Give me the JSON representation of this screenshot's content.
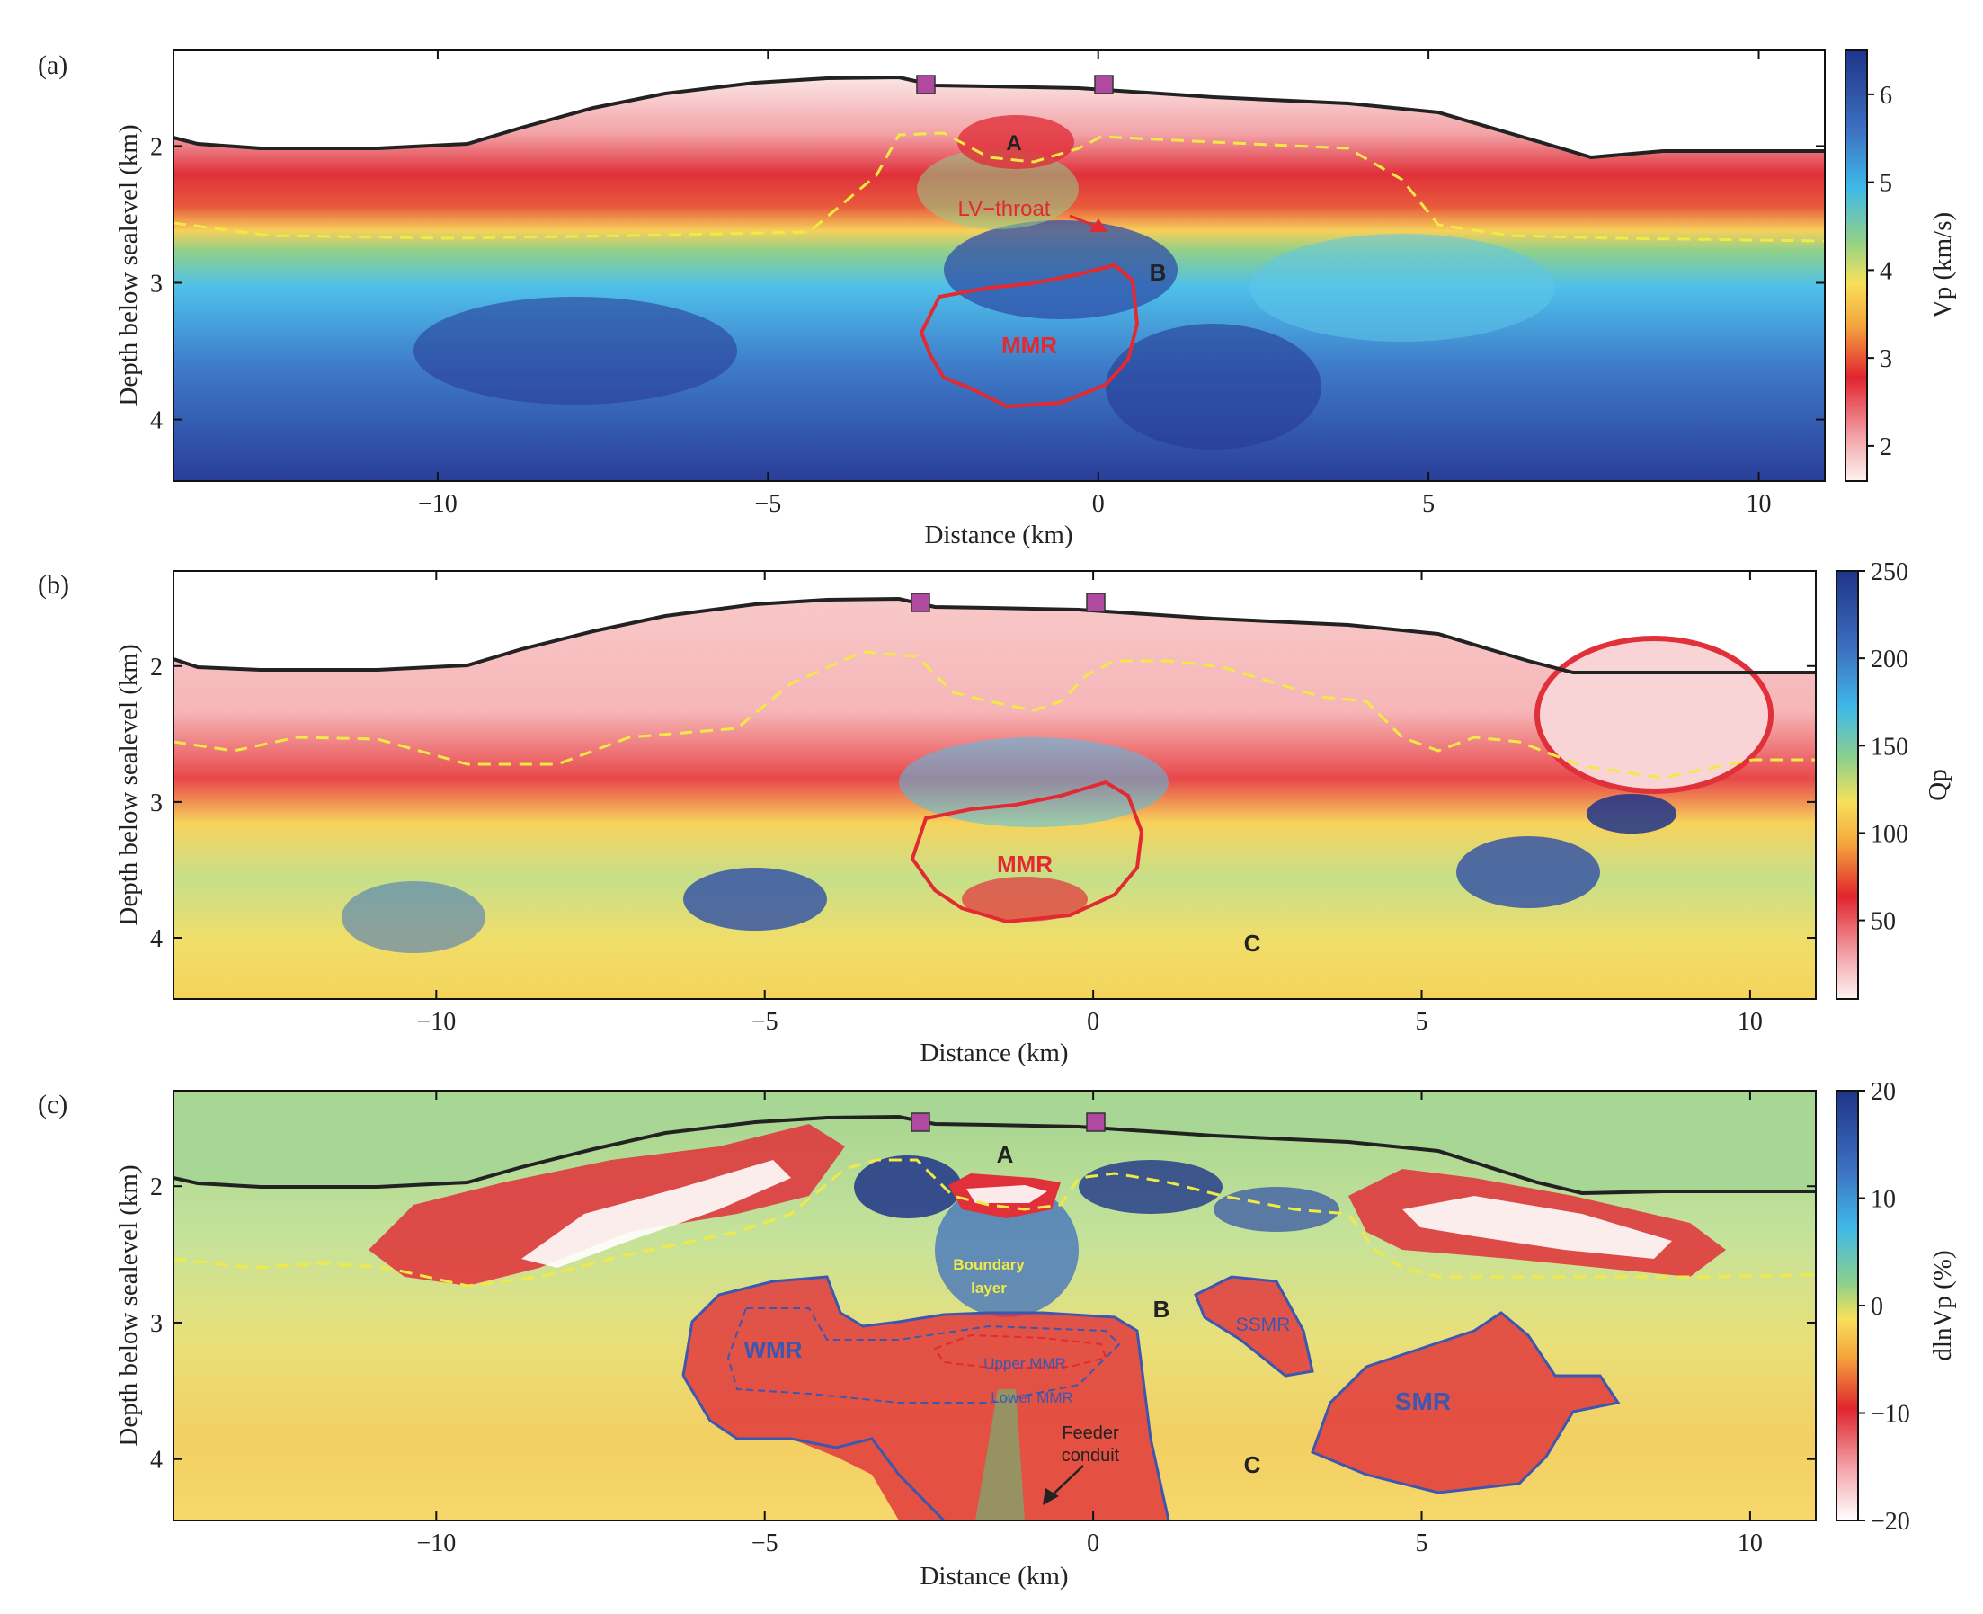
{
  "panels": [
    {
      "tag": "(a)",
      "xlabel": "Distance (km)",
      "ylabel": "Depth below sealevel (km)",
      "colorbar_label": "Vp (km/s)",
      "colorbar_ticks": [
        "2",
        "3",
        "4",
        "5",
        "6"
      ],
      "colorbar_ticks_values": [
        2,
        3,
        4,
        5,
        6
      ],
      "colorbar_range": [
        1.6,
        6.5
      ],
      "colormap": [
        "#fdf3f1",
        "#f3a5ab",
        "#e0252e",
        "#f4a43c",
        "#f7e15a",
        "#8fd08a",
        "#3fb9e8",
        "#3d6fc0",
        "#1e3489"
      ],
      "annotations": [
        "A",
        "LV-throat",
        "B",
        "MMR"
      ]
    },
    {
      "tag": "(b)",
      "xlabel": "Distance (km)",
      "ylabel": "Depth below sealevel (km)",
      "colorbar_label": "Qp",
      "colorbar_ticks": [
        "50",
        "100",
        "150",
        "200",
        "250"
      ],
      "colorbar_ticks_values": [
        50,
        100,
        150,
        200,
        250
      ],
      "colorbar_range": [
        5,
        250
      ],
      "colormap": [
        "#fdf3f1",
        "#f3a5ab",
        "#e0252e",
        "#f4a43c",
        "#f7e15a",
        "#8fd08a",
        "#3fb9e8",
        "#3d6fc0",
        "#1e3489"
      ],
      "annotations": [
        "MMR",
        "C"
      ]
    },
    {
      "tag": "(c)",
      "xlabel": "Distance (km)",
      "ylabel": "Depth below sealevel (km)",
      "colorbar_label": "dlnVp (%)",
      "colorbar_ticks": [
        "20",
        "10",
        "0",
        "−10",
        "−20"
      ],
      "colorbar_ticks_values": [
        20,
        10,
        0,
        -10,
        -20
      ],
      "colorbar_range": [
        -20,
        20
      ],
      "colormap": [
        "#ffffff",
        "#f3a5ab",
        "#e0252e",
        "#f4a43c",
        "#f7e15a",
        "#8fd08a",
        "#3fb9e8",
        "#3d6fc0",
        "#1e3489"
      ],
      "annotations": [
        "A",
        "Boundary layer",
        "B",
        "SSMR",
        "WMR",
        "Upper MMR",
        "Lower MMR",
        "SMR",
        "Feeder conduit",
        "C"
      ]
    }
  ],
  "x_ticks": [
    "−10",
    "−5",
    "0",
    "5",
    "10"
  ],
  "y_ticks": [
    "2",
    "3",
    "4"
  ],
  "labels": {
    "A": "A",
    "B": "B",
    "C": "C",
    "lv_throat": "LV−throat",
    "mmr": "MMR",
    "wmr": "WMR",
    "ssmr": "SSMR",
    "smr": "SMR",
    "upper_mmr": "Upper MMR",
    "lower_mmr": "Lower MMR",
    "boundary_1": "Boundary",
    "boundary_2": "layer",
    "feeder_1": "Feeder",
    "feeder_2": "conduit"
  },
  "chart_data": [
    {
      "type": "heatmap",
      "title": "",
      "xlabel": "Distance (km)",
      "ylabel": "Depth below sealevel (km)",
      "xlim": [
        -14,
        11
      ],
      "ylim": [
        4.45,
        1.3
      ],
      "x_ticks": [
        -10,
        -5,
        0,
        5,
        10
      ],
      "y_ticks": [
        2,
        3,
        4
      ],
      "colorbar": {
        "label": "Vp (km/s)",
        "range": [
          1.6,
          6.5
        ],
        "ticks": [
          2,
          3,
          4,
          5,
          6
        ]
      },
      "stations_km": [
        -2.6,
        0.1
      ],
      "topography": {
        "x": [
          -14,
          -13.5,
          -12,
          -10,
          -8.5,
          -7,
          -5.5,
          -4,
          -3,
          -2.6,
          -1,
          0,
          1,
          3,
          4.5,
          6,
          6.8,
          7.5,
          9,
          11
        ],
        "depth": [
          1.92,
          1.98,
          1.98,
          1.97,
          1.85,
          1.73,
          1.63,
          1.57,
          1.53,
          1.52,
          1.56,
          1.57,
          1.58,
          1.65,
          1.72,
          1.82,
          1.98,
          1.95,
          1.99,
          2.0
        ]
      },
      "dashed_horizon": {
        "x": [
          -14,
          -12,
          -10,
          -8,
          -6,
          -4,
          -3,
          -2.5,
          -1,
          0,
          2,
          4,
          5,
          6,
          8,
          10,
          11
        ],
        "depth": [
          2.5,
          2.6,
          2.6,
          2.6,
          2.6,
          2.55,
          1.9,
          1.85,
          2.2,
          1.9,
          1.9,
          1.95,
          2.5,
          2.7,
          2.65,
          2.65,
          2.65
        ]
      },
      "annotations": [
        {
          "text": "A",
          "x": -1.2,
          "y": 1.95
        },
        {
          "text": "LV−throat",
          "x": -1.3,
          "y": 2.45
        },
        {
          "text": "B",
          "x": 1.0,
          "y": 2.88
        },
        {
          "text": "MMR",
          "x": -0.9,
          "y": 3.45
        }
      ]
    },
    {
      "type": "heatmap",
      "title": "",
      "xlabel": "Distance (km)",
      "ylabel": "Depth below sealevel (km)",
      "xlim": [
        -14,
        11
      ],
      "ylim": [
        4.45,
        1.3
      ],
      "x_ticks": [
        -10,
        -5,
        0,
        5,
        10
      ],
      "y_ticks": [
        2,
        3,
        4
      ],
      "colorbar": {
        "label": "Qp",
        "range": [
          5,
          250
        ],
        "ticks": [
          50,
          100,
          150,
          200,
          250
        ]
      },
      "stations_km": [
        -2.6,
        0.1
      ],
      "annotations": [
        {
          "text": "MMR",
          "x": -0.9,
          "y": 3.45
        },
        {
          "text": "C",
          "x": 2.5,
          "y": 4.0
        }
      ]
    },
    {
      "type": "heatmap",
      "title": "",
      "xlabel": "Distance (km)",
      "ylabel": "Depth below sealevel (km)",
      "xlim": [
        -14,
        11
      ],
      "ylim": [
        4.45,
        1.3
      ],
      "x_ticks": [
        -10,
        -5,
        0,
        5,
        10
      ],
      "y_ticks": [
        2,
        3,
        4
      ],
      "colorbar": {
        "label": "dlnVp (%)",
        "range": [
          -20,
          20
        ],
        "ticks": [
          20,
          10,
          0,
          -10,
          -20
        ]
      },
      "stations_km": [
        -2.6,
        0.1
      ],
      "annotations": [
        {
          "text": "A",
          "x": -1.3,
          "y": 1.85
        },
        {
          "text": "Boundary layer",
          "x": -1.6,
          "y": 2.85
        },
        {
          "text": "B",
          "x": 1.2,
          "y": 3.05
        },
        {
          "text": "SSMR",
          "x": 2.8,
          "y": 3.15
        },
        {
          "text": "WMR",
          "x": -4.7,
          "y": 3.35
        },
        {
          "text": "Upper MMR",
          "x": -0.8,
          "y": 3.5
        },
        {
          "text": "Lower MMR",
          "x": -0.6,
          "y": 3.75
        },
        {
          "text": "SMR",
          "x": 5.2,
          "y": 3.8
        },
        {
          "text": "Feeder conduit",
          "x": 0.0,
          "y": 4.05
        },
        {
          "text": "C",
          "x": 2.5,
          "y": 4.05
        }
      ]
    }
  ]
}
